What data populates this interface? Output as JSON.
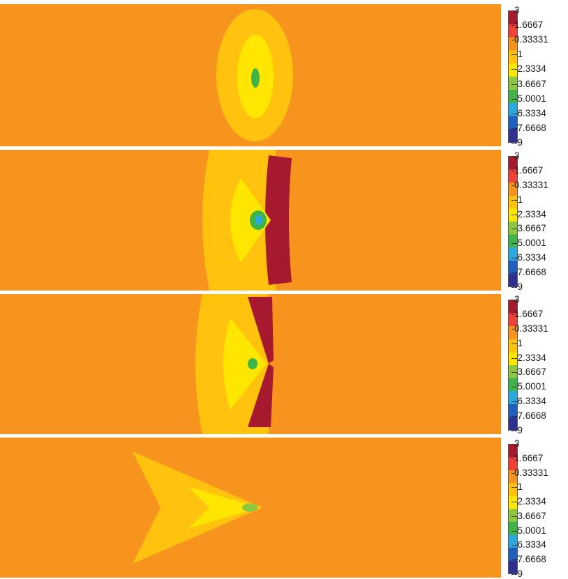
{
  "chart_data": {
    "type": "heatmap",
    "panel_count": 4,
    "colorbar": {
      "min": -9,
      "max": 3,
      "ticks": [
        "3",
        "1.6667",
        "0.33331",
        "-1",
        "-2.3334",
        "-3.6667",
        "-5.0001",
        "-6.3334",
        "-7.6668",
        "-9"
      ],
      "colors": [
        "#2e3192",
        "#1f5fbf",
        "#29a9e0",
        "#3fb549",
        "#8dc63f",
        "#ffe600",
        "#ffc20e",
        "#f7941d",
        "#ef4136",
        "#a6192e"
      ]
    },
    "background_value": 0.1,
    "panels": [
      {
        "min_value": -5.0,
        "pattern": "centered ellipse"
      },
      {
        "min_value": -6.3,
        "pattern": "arc with positive band on right"
      },
      {
        "min_value": -5.0,
        "pattern": "chevron with positive band on right"
      },
      {
        "min_value": -3.7,
        "pattern": "V-shaped wake opening to the left"
      }
    ]
  }
}
